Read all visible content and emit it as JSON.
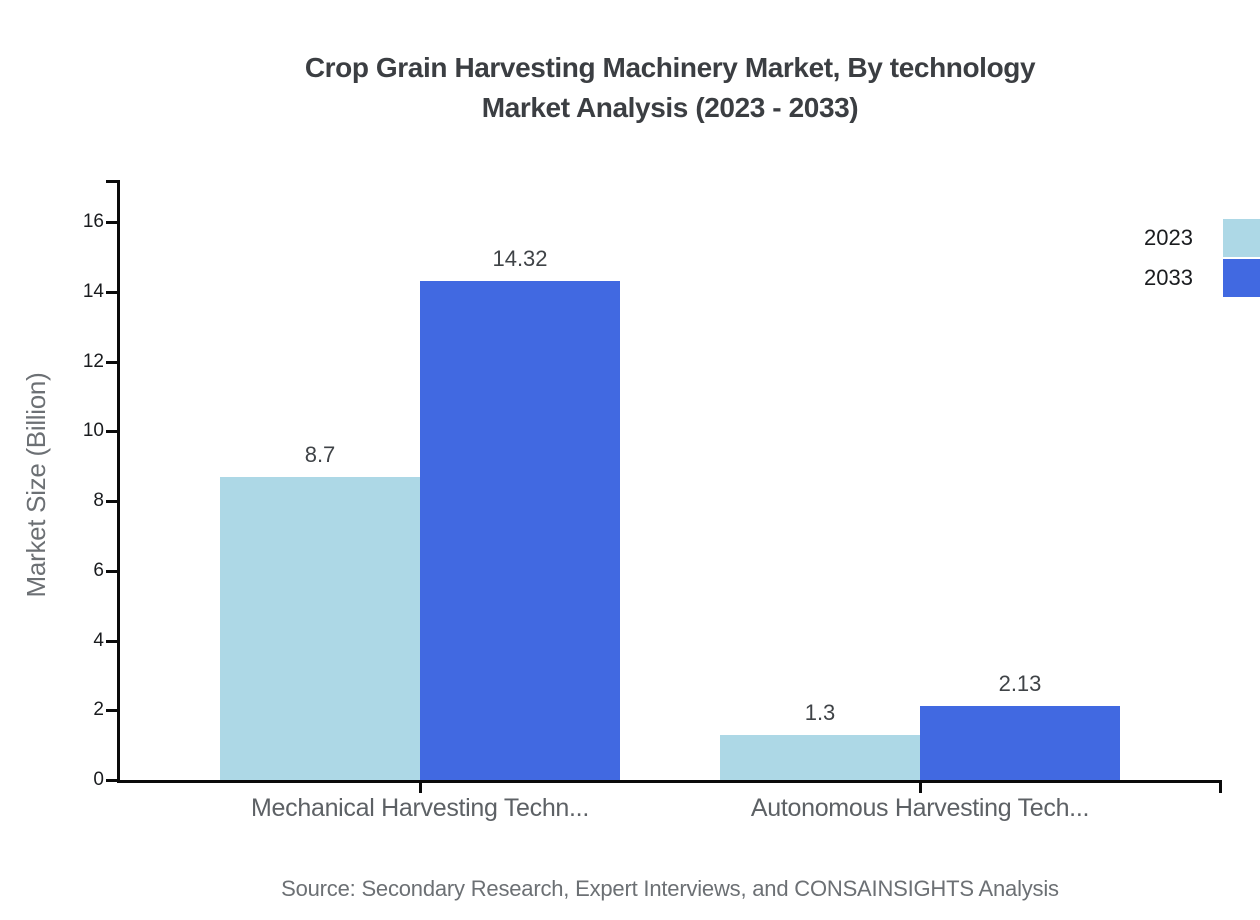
{
  "title": {
    "line1": "Crop Grain Harvesting Machinery Market, By technology",
    "line2": "Market Analysis (2023 - 2033)"
  },
  "source": "Source: Secondary Research, Expert Interviews, and CONSAINSIGHTS Analysis",
  "legend": {
    "items": [
      {
        "label": "2023",
        "color": "#ADD8E6"
      },
      {
        "label": "2033",
        "color": "#4169E1"
      }
    ]
  },
  "chart_data": {
    "type": "bar",
    "grouped": true,
    "title": "Crop Grain Harvesting Machinery Market, By technology Market Analysis (2023 - 2033)",
    "categories": [
      "Mechanical Harvesting Techn...",
      "Autonomous Harvesting Tech..."
    ],
    "series": [
      {
        "name": "2023",
        "color": "#ADD8E6",
        "values": [
          8.7,
          1.3
        ]
      },
      {
        "name": "2033",
        "color": "#4169E1",
        "values": [
          14.32,
          2.13
        ]
      }
    ],
    "xlabel": "",
    "ylabel": "Market Size (Billion)",
    "ylim": [
      0,
      16
    ],
    "yticks": [
      0,
      2,
      4,
      6,
      8,
      10,
      12,
      14,
      16
    ],
    "grid": false,
    "legend_position": "top-right",
    "value_labels_shown": true
  }
}
